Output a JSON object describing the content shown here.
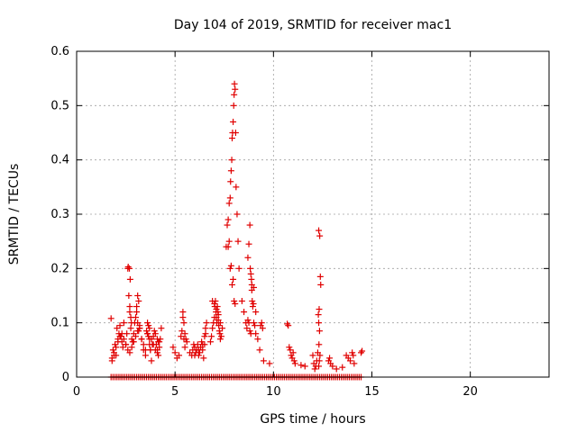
{
  "chart_data": {
    "type": "scatter",
    "title": "Day 104 of 2019, SRMTID for receiver mac1",
    "xlabel": "GPS time / hours",
    "ylabel": "SRMTID / TECUs",
    "xlim": [
      0,
      24
    ],
    "ylim": [
      0,
      0.6
    ],
    "xticks": [
      0,
      5,
      10,
      15,
      20
    ],
    "yticks": [
      0,
      0.1,
      0.2,
      0.3,
      0.4,
      0.5,
      0.6
    ],
    "xtick_labels": [
      "0",
      "5",
      "10",
      "15",
      "20"
    ],
    "ytick_labels": [
      "0",
      "0.1",
      "0.2",
      "0.3",
      "0.4",
      "0.5",
      "0.6"
    ],
    "grid": true,
    "marker": "plus",
    "marker_color": "#e00000",
    "x": [
      1.75,
      1.8,
      1.85,
      1.9,
      1.95,
      2.0,
      2.05,
      2.1,
      2.15,
      2.2,
      2.25,
      2.3,
      2.35,
      2.4,
      2.5,
      2.55,
      2.6,
      2.65,
      2.7,
      2.75,
      2.8,
      2.85,
      2.9,
      2.95,
      3.0,
      3.05,
      3.1,
      3.15,
      3.2,
      3.3,
      3.4,
      3.5,
      3.55,
      3.6,
      3.65,
      3.7,
      3.75,
      3.8,
      3.85,
      3.9,
      3.95,
      4.0,
      4.05,
      4.1,
      4.15,
      4.2,
      4.25,
      4.3,
      1.8,
      1.9,
      2.0,
      2.1,
      2.2,
      2.3,
      2.4,
      2.5,
      2.6,
      2.7,
      2.8,
      2.9,
      3.0,
      3.1,
      3.2,
      3.3,
      3.4,
      3.5,
      3.6,
      3.7,
      3.8,
      3.9,
      4.0,
      4.1,
      4.2,
      2.62,
      2.68,
      2.72,
      2.7,
      2.75,
      2.78,
      3.05,
      3.1,
      3.15,
      3.2,
      3.6,
      3.65,
      3.7,
      3.75,
      4.1,
      4.15,
      4.9,
      5.0,
      5.1,
      5.2,
      5.3,
      5.35,
      5.4,
      5.45,
      5.5,
      5.55,
      5.6,
      5.75,
      5.85,
      5.9,
      5.95,
      6.0,
      6.05,
      6.1,
      6.15,
      6.2,
      6.25,
      6.3,
      6.35,
      6.4,
      6.45,
      6.5,
      6.55,
      6.6,
      5.4,
      5.45,
      5.5,
      6.0,
      6.2,
      6.4,
      6.5,
      6.55,
      6.8,
      6.85,
      6.9,
      6.95,
      7.0,
      7.02,
      7.05,
      7.08,
      7.1,
      7.12,
      7.15,
      7.18,
      7.2,
      7.22,
      7.25,
      7.28,
      7.3,
      7.35,
      7.4,
      6.9,
      7.0,
      7.1,
      7.2,
      7.3,
      7.6,
      7.65,
      7.7,
      7.75,
      7.8,
      7.82,
      7.85,
      7.88,
      7.9,
      7.92,
      7.95,
      7.98,
      8.0,
      8.02,
      8.05,
      8.08,
      8.1,
      8.15,
      8.2,
      8.25,
      7.7,
      7.75,
      7.8,
      7.85,
      7.9,
      7.95,
      8.0,
      8.05,
      8.4,
      8.5,
      8.6,
      8.65,
      8.7,
      8.75,
      8.8,
      8.82,
      8.85,
      8.88,
      8.9,
      8.92,
      8.95,
      8.98,
      9.0,
      9.05,
      9.1,
      9.2,
      9.3,
      9.35,
      9.4,
      9.45,
      9.5,
      9.8,
      8.7,
      8.75,
      8.8,
      8.85,
      8.9,
      9.0,
      9.1,
      10.7,
      10.75,
      10.8,
      10.85,
      10.9,
      10.95,
      11.0,
      11.05,
      11.1,
      11.4,
      11.6,
      12.0,
      12.05,
      12.1,
      12.15,
      12.2,
      12.25,
      12.3,
      12.35,
      12.38,
      12.4,
      12.32,
      12.28,
      12.3,
      12.34,
      12.31,
      12.36,
      12.33,
      12.3,
      12.8,
      12.85,
      12.9,
      13.0,
      13.2,
      13.5,
      13.7,
      13.8,
      13.9,
      14.0,
      14.05,
      14.1,
      14.45,
      14.5
    ],
    "y": [
      0.108,
      0.035,
      0.05,
      0.045,
      0.06,
      0.04,
      0.09,
      0.07,
      0.08,
      0.095,
      0.075,
      0.065,
      0.055,
      0.1,
      0.06,
      0.08,
      0.2,
      0.15,
      0.12,
      0.09,
      0.07,
      0.065,
      0.08,
      0.1,
      0.11,
      0.13,
      0.15,
      0.14,
      0.09,
      0.07,
      0.05,
      0.04,
      0.085,
      0.1,
      0.095,
      0.07,
      0.05,
      0.03,
      0.06,
      0.075,
      0.085,
      0.08,
      0.06,
      0.05,
      0.04,
      0.065,
      0.07,
      0.09,
      0.03,
      0.04,
      0.055,
      0.065,
      0.075,
      0.08,
      0.07,
      0.06,
      0.05,
      0.045,
      0.055,
      0.065,
      0.075,
      0.085,
      0.095,
      0.07,
      0.06,
      0.05,
      0.08,
      0.09,
      0.07,
      0.06,
      0.05,
      0.045,
      0.055,
      0.203,
      0.2,
      0.18,
      0.13,
      0.11,
      0.1,
      0.12,
      0.1,
      0.085,
      0.09,
      0.08,
      0.075,
      0.06,
      0.05,
      0.07,
      0.065,
      0.055,
      0.045,
      0.035,
      0.04,
      0.075,
      0.085,
      0.11,
      0.1,
      0.08,
      0.07,
      0.065,
      0.045,
      0.04,
      0.05,
      0.06,
      0.055,
      0.045,
      0.05,
      0.06,
      0.04,
      0.045,
      0.055,
      0.065,
      0.05,
      0.035,
      0.06,
      0.09,
      0.1,
      0.12,
      0.07,
      0.055,
      0.04,
      0.05,
      0.06,
      0.075,
      0.08,
      0.065,
      0.075,
      0.09,
      0.1,
      0.11,
      0.13,
      0.14,
      0.12,
      0.11,
      0.1,
      0.13,
      0.12,
      0.105,
      0.095,
      0.085,
      0.08,
      0.07,
      0.075,
      0.09,
      0.14,
      0.135,
      0.125,
      0.115,
      0.1,
      0.24,
      0.28,
      0.29,
      0.32,
      0.33,
      0.36,
      0.38,
      0.4,
      0.44,
      0.45,
      0.47,
      0.5,
      0.52,
      0.54,
      0.53,
      0.45,
      0.35,
      0.3,
      0.25,
      0.2,
      0.24,
      0.25,
      0.2,
      0.205,
      0.17,
      0.18,
      0.14,
      0.135,
      0.14,
      0.12,
      0.1,
      0.09,
      0.22,
      0.245,
      0.28,
      0.2,
      0.19,
      0.18,
      0.16,
      0.14,
      0.13,
      0.135,
      0.1,
      0.095,
      0.08,
      0.07,
      0.05,
      0.095,
      0.1,
      0.09,
      0.03,
      0.025,
      0.105,
      0.1,
      0.085,
      0.08,
      0.17,
      0.165,
      0.12,
      0.098,
      0.095,
      0.055,
      0.05,
      0.04,
      0.035,
      0.045,
      0.03,
      0.025,
      0.022,
      0.02,
      0.04,
      0.025,
      0.015,
      0.02,
      0.03,
      0.045,
      0.27,
      0.26,
      0.185,
      0.17,
      0.125,
      0.115,
      0.1,
      0.085,
      0.06,
      0.04,
      0.03,
      0.02,
      0.03,
      0.035,
      0.025,
      0.02,
      0.015,
      0.018,
      0.04,
      0.035,
      0.03,
      0.045,
      0.04,
      0.025,
      0.045,
      0.048
    ],
    "baseline_x_range": [
      1.75,
      14.5
    ],
    "baseline_y": 0
  }
}
